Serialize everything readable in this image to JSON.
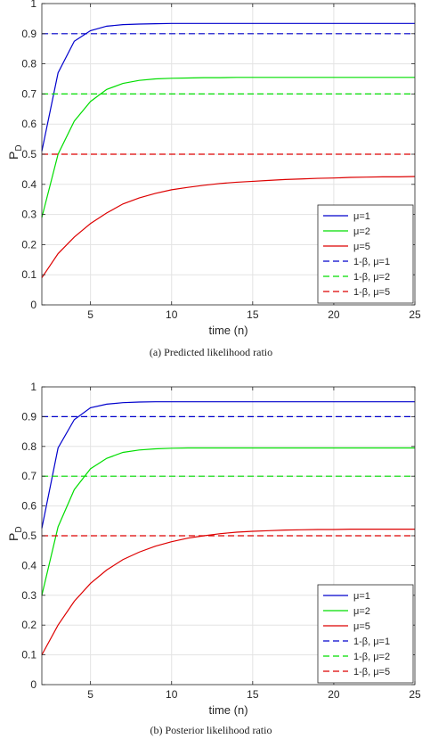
{
  "chart_data": [
    {
      "type": "line",
      "caption": "(a) Predicted likelihood ratio",
      "xlabel": "time (n)",
      "ylabel": "P",
      "ylabel_sub": "D",
      "xlim": [
        2,
        25
      ],
      "ylim": [
        0,
        1
      ],
      "xticks": [
        5,
        10,
        15,
        20,
        25
      ],
      "yticks": [
        0,
        0.1,
        0.2,
        0.3,
        0.4,
        0.5,
        0.6,
        0.7,
        0.8,
        0.9,
        1
      ],
      "grid": true,
      "legend_position": "bottom-right",
      "series": [
        {
          "name": "μ=1",
          "color": "#0000cc",
          "style": "solid",
          "x": [
            2,
            3,
            4,
            5,
            6,
            7,
            8,
            9,
            10,
            11,
            12,
            13,
            14,
            15,
            16,
            17,
            18,
            19,
            20,
            21,
            22,
            23,
            24,
            25
          ],
          "y": [
            0.51,
            0.77,
            0.875,
            0.91,
            0.925,
            0.93,
            0.932,
            0.933,
            0.934,
            0.934,
            0.934,
            0.934,
            0.934,
            0.934,
            0.934,
            0.934,
            0.934,
            0.934,
            0.934,
            0.934,
            0.934,
            0.934,
            0.934,
            0.934
          ]
        },
        {
          "name": "μ=2",
          "color": "#00dd00",
          "style": "solid",
          "x": [
            2,
            3,
            4,
            5,
            6,
            7,
            8,
            9,
            10,
            11,
            12,
            13,
            14,
            15,
            16,
            17,
            18,
            19,
            20,
            21,
            22,
            23,
            24,
            25
          ],
          "y": [
            0.29,
            0.5,
            0.61,
            0.675,
            0.715,
            0.735,
            0.745,
            0.75,
            0.752,
            0.753,
            0.754,
            0.754,
            0.755,
            0.755,
            0.755,
            0.755,
            0.755,
            0.755,
            0.755,
            0.755,
            0.755,
            0.755,
            0.755,
            0.755
          ]
        },
        {
          "name": "μ=5",
          "color": "#dd0000",
          "style": "solid",
          "x": [
            2,
            3,
            4,
            5,
            6,
            7,
            8,
            9,
            10,
            11,
            12,
            13,
            14,
            15,
            16,
            17,
            18,
            19,
            20,
            21,
            22,
            23,
            24,
            25
          ],
          "y": [
            0.09,
            0.17,
            0.225,
            0.27,
            0.305,
            0.335,
            0.355,
            0.37,
            0.382,
            0.39,
            0.397,
            0.403,
            0.407,
            0.41,
            0.413,
            0.416,
            0.418,
            0.42,
            0.421,
            0.423,
            0.424,
            0.425,
            0.425,
            0.426
          ]
        },
        {
          "name": "1-β, μ=1",
          "color": "#0000cc",
          "style": "dashed",
          "x": [
            2,
            25
          ],
          "y": [
            0.9,
            0.9
          ]
        },
        {
          "name": "1-β, μ=2",
          "color": "#00dd00",
          "style": "dashed",
          "x": [
            2,
            25
          ],
          "y": [
            0.7,
            0.7
          ]
        },
        {
          "name": "1-β, μ=5",
          "color": "#dd0000",
          "style": "dashed",
          "x": [
            2,
            25
          ],
          "y": [
            0.5,
            0.5
          ]
        }
      ]
    },
    {
      "type": "line",
      "caption": "(b) Posterior likelihood ratio",
      "xlabel": "time (n)",
      "ylabel": "P",
      "ylabel_sub": "D",
      "xlim": [
        2,
        25
      ],
      "ylim": [
        0,
        1
      ],
      "xticks": [
        5,
        10,
        15,
        20,
        25
      ],
      "yticks": [
        0,
        0.1,
        0.2,
        0.3,
        0.4,
        0.5,
        0.6,
        0.7,
        0.8,
        0.9,
        1
      ],
      "grid": true,
      "legend_position": "bottom-right",
      "series": [
        {
          "name": "μ=1",
          "color": "#0000cc",
          "style": "solid",
          "x": [
            2,
            3,
            4,
            5,
            6,
            7,
            8,
            9,
            10,
            11,
            12,
            13,
            14,
            15,
            16,
            17,
            18,
            19,
            20,
            21,
            22,
            23,
            24,
            25
          ],
          "y": [
            0.525,
            0.795,
            0.89,
            0.93,
            0.942,
            0.947,
            0.949,
            0.95,
            0.95,
            0.95,
            0.95,
            0.95,
            0.95,
            0.95,
            0.95,
            0.95,
            0.95,
            0.95,
            0.95,
            0.95,
            0.95,
            0.95,
            0.95,
            0.95
          ]
        },
        {
          "name": "μ=2",
          "color": "#00dd00",
          "style": "solid",
          "x": [
            2,
            3,
            4,
            5,
            6,
            7,
            8,
            9,
            10,
            11,
            12,
            13,
            14,
            15,
            16,
            17,
            18,
            19,
            20,
            21,
            22,
            23,
            24,
            25
          ],
          "y": [
            0.3,
            0.53,
            0.655,
            0.725,
            0.76,
            0.78,
            0.788,
            0.792,
            0.794,
            0.795,
            0.795,
            0.795,
            0.795,
            0.795,
            0.795,
            0.795,
            0.795,
            0.795,
            0.795,
            0.795,
            0.795,
            0.795,
            0.795,
            0.795
          ]
        },
        {
          "name": "μ=5",
          "color": "#dd0000",
          "style": "solid",
          "x": [
            2,
            3,
            4,
            5,
            6,
            7,
            8,
            9,
            10,
            11,
            12,
            13,
            14,
            15,
            16,
            17,
            18,
            19,
            20,
            21,
            22,
            23,
            24,
            25
          ],
          "y": [
            0.1,
            0.2,
            0.28,
            0.34,
            0.385,
            0.42,
            0.445,
            0.465,
            0.48,
            0.492,
            0.5,
            0.507,
            0.512,
            0.515,
            0.517,
            0.519,
            0.52,
            0.521,
            0.521,
            0.522,
            0.522,
            0.522,
            0.522,
            0.522
          ]
        },
        {
          "name": "1-β, μ=1",
          "color": "#0000cc",
          "style": "dashed",
          "x": [
            2,
            25
          ],
          "y": [
            0.9,
            0.9
          ]
        },
        {
          "name": "1-β, μ=2",
          "color": "#00dd00",
          "style": "dashed",
          "x": [
            2,
            25
          ],
          "y": [
            0.7,
            0.7
          ]
        },
        {
          "name": "1-β, μ=5",
          "color": "#dd0000",
          "style": "dashed",
          "x": [
            2,
            25
          ],
          "y": [
            0.5,
            0.5
          ]
        }
      ]
    }
  ]
}
